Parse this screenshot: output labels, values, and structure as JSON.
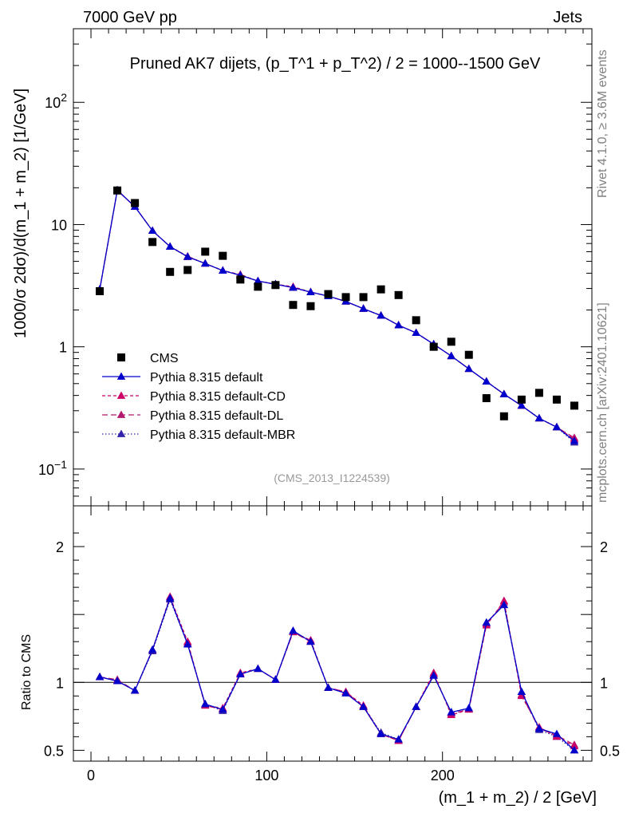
{
  "header": {
    "energy": "7000 GeV pp",
    "process": "Jets",
    "side_rivet": "Rivet 4.1.0, ≥ 3.6M events",
    "side_site": "mcplots.cern.ch [arXiv:2401.10621]"
  },
  "chart_data": {
    "type": "scatter",
    "title": "Pruned AK7 dijets, (p_T^1 + p_T^2) / 2 = 1000--1500 GeV",
    "analysis_tag": "(CMS_2013_I1224539)",
    "xlabel": "(m_1 + m_2) / 2 [GeV]",
    "ylabel": "1000/σ  2dσ)/d(m_1 + m_2) [1/GeV]",
    "ratio_ylabel": "Ratio to CMS",
    "xlim": [
      -10,
      285
    ],
    "ylim": [
      0.05,
      400
    ],
    "yscale": "log",
    "ratio_ylim": [
      0.42,
      2.3
    ],
    "x_ticks": [
      "0",
      "100",
      "200"
    ],
    "y_ticks": [
      "10^-1",
      "1",
      "10",
      "10^2"
    ],
    "ratio_ticks": [
      "0.5",
      "1",
      "2"
    ],
    "x": [
      5,
      15,
      25,
      35,
      45,
      55,
      65,
      75,
      85,
      95,
      105,
      115,
      125,
      135,
      145,
      155,
      165,
      175,
      185,
      195,
      205,
      215,
      225,
      235,
      245,
      255,
      265,
      275
    ],
    "data": {
      "name": "CMS",
      "values": [
        2.85,
        19.0,
        15.0,
        7.2,
        4.1,
        4.25,
        6.0,
        5.55,
        3.55,
        3.1,
        3.2,
        2.2,
        2.15,
        2.7,
        2.55,
        2.55,
        2.95,
        2.65,
        1.65,
        1.0,
        1.1,
        0.86,
        0.38,
        0.27,
        0.37,
        0.42,
        0.37,
        0.33
      ]
    },
    "series": [
      {
        "name": "Pythia 8.315 default",
        "color": "#0000cc",
        "dash": "",
        "values": [
          2.95,
          19.1,
          14.0,
          8.9,
          6.6,
          5.45,
          4.8,
          4.2,
          3.85,
          3.45,
          3.25,
          3.05,
          2.8,
          2.6,
          2.35,
          2.05,
          1.8,
          1.5,
          1.3,
          1.05,
          0.84,
          0.66,
          0.52,
          0.41,
          0.33,
          0.26,
          0.22,
          0.17
        ],
        "ratio": [
          1.04,
          1.01,
          0.94,
          1.24,
          1.62,
          1.28,
          0.84,
          0.8,
          1.06,
          1.1,
          1.02,
          1.38,
          1.3,
          0.96,
          0.92,
          0.82,
          0.62,
          0.58,
          0.82,
          1.05,
          0.78,
          0.81,
          1.44,
          1.57,
          0.93,
          0.66,
          0.62,
          0.5
        ]
      },
      {
        "name": "Pythia 8.315 default-CD",
        "color": "#cc0066",
        "dash": "4 3",
        "values": [
          2.95,
          19.1,
          14.0,
          8.9,
          6.6,
          5.5,
          4.8,
          4.2,
          3.9,
          3.45,
          3.25,
          3.1,
          2.8,
          2.6,
          2.35,
          2.05,
          1.8,
          1.5,
          1.3,
          1.05,
          0.84,
          0.66,
          0.52,
          0.41,
          0.33,
          0.26,
          0.22,
          0.175
        ],
        "ratio": [
          1.04,
          1.01,
          0.94,
          1.24,
          1.63,
          1.3,
          0.83,
          0.81,
          1.07,
          1.1,
          1.02,
          1.37,
          1.31,
          0.96,
          0.93,
          0.83,
          0.62,
          0.57,
          0.82,
          1.07,
          0.76,
          0.8,
          1.42,
          1.6,
          0.9,
          0.67,
          0.6,
          0.53
        ]
      },
      {
        "name": "Pythia 8.315 default-DL",
        "color": "#b3196e",
        "dash": "7 4",
        "values": [
          2.95,
          19.0,
          14.0,
          8.9,
          6.6,
          5.45,
          4.8,
          4.2,
          3.85,
          3.45,
          3.25,
          3.05,
          2.8,
          2.6,
          2.35,
          2.05,
          1.8,
          1.5,
          1.3,
          1.05,
          0.84,
          0.66,
          0.52,
          0.41,
          0.33,
          0.26,
          0.22,
          0.18
        ],
        "ratio": [
          1.04,
          1.02,
          0.94,
          1.24,
          1.62,
          1.29,
          0.83,
          0.8,
          1.06,
          1.1,
          1.02,
          1.37,
          1.3,
          0.96,
          0.93,
          0.82,
          0.62,
          0.57,
          0.82,
          1.06,
          0.77,
          0.8,
          1.43,
          1.59,
          0.91,
          0.66,
          0.61,
          0.54
        ]
      },
      {
        "name": "Pythia 8.315 default-MBR",
        "color": "#3322aa",
        "dash": "1.5 2.5",
        "values": [
          2.95,
          19.1,
          14.0,
          8.9,
          6.6,
          5.45,
          4.8,
          4.2,
          3.85,
          3.45,
          3.25,
          3.05,
          2.8,
          2.6,
          2.35,
          2.05,
          1.8,
          1.5,
          1.3,
          1.05,
          0.84,
          0.66,
          0.52,
          0.41,
          0.33,
          0.26,
          0.22,
          0.165
        ],
        "ratio": [
          1.04,
          1.01,
          0.94,
          1.23,
          1.61,
          1.28,
          0.84,
          0.79,
          1.06,
          1.1,
          1.02,
          1.38,
          1.3,
          0.96,
          0.92,
          0.82,
          0.63,
          0.58,
          0.82,
          1.05,
          0.78,
          0.81,
          1.44,
          1.57,
          0.93,
          0.65,
          0.6,
          0.5
        ]
      }
    ],
    "legend_placement": "lower-left"
  }
}
